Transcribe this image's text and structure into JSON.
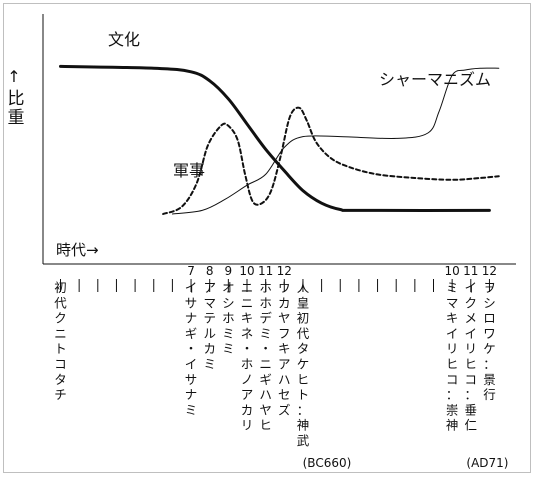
{
  "chart_data": {
    "type": "line",
    "x_axis_label": "時代→",
    "y_axis_label_arrow": "↑",
    "y_axis_label": "比重",
    "ticks": [
      {
        "num": "",
        "label": "初代クニトコタチ"
      },
      {
        "num": "",
        "label": ""
      },
      {
        "num": "",
        "label": ""
      },
      {
        "num": "",
        "label": ""
      },
      {
        "num": "",
        "label": ""
      },
      {
        "num": "",
        "label": ""
      },
      {
        "num": "",
        "label": ""
      },
      {
        "num": "7",
        "label": "イサナギ・イサナミ"
      },
      {
        "num": "8",
        "label": "アマテルカミ"
      },
      {
        "num": "9",
        "label": "オシホミミ"
      },
      {
        "num": "10",
        "label": "ニニキネ・ホノアカリ"
      },
      {
        "num": "11",
        "label": "ホホデミ・ニギハヤヒ"
      },
      {
        "num": "12",
        "label": "ウカヤフキアハセズ"
      },
      {
        "num": "",
        "label": "人皇初代タケヒト：神武"
      },
      {
        "num": "",
        "label": ""
      },
      {
        "num": "",
        "label": ""
      },
      {
        "num": "",
        "label": ""
      },
      {
        "num": "",
        "label": ""
      },
      {
        "num": "",
        "label": ""
      },
      {
        "num": "",
        "label": ""
      },
      {
        "num": "",
        "label": ""
      },
      {
        "num": "10",
        "label": "ミマキイリヒコ：崇神"
      },
      {
        "num": "11",
        "label": "イクメイリヒコ：垂仁"
      },
      {
        "num": "12",
        "label": "ヲシロワケ：景行"
      }
    ],
    "markers": [
      {
        "text": "(BC660)",
        "at_tick": 13
      },
      {
        "text": "(AD71)",
        "at_tick": 23
      }
    ],
    "ylim": [
      0,
      1
    ],
    "series": [
      {
        "name": "文化",
        "style": "solid-thick",
        "points": [
          [
            0,
            0.82
          ],
          [
            5,
            0.81
          ],
          [
            7,
            0.79
          ],
          [
            8,
            0.74
          ],
          [
            9,
            0.64
          ],
          [
            10,
            0.5
          ],
          [
            11,
            0.36
          ],
          [
            12,
            0.24
          ],
          [
            13,
            0.13
          ],
          [
            14,
            0.06
          ],
          [
            15,
            0.025
          ],
          [
            16,
            0.02
          ],
          [
            23,
            0.02
          ]
        ]
      },
      {
        "name": "軍事",
        "style": "dashed",
        "points": [
          [
            5.5,
            0
          ],
          [
            6.5,
            0.04
          ],
          [
            7.3,
            0.17
          ],
          [
            7.9,
            0.38
          ],
          [
            8.6,
            0.49
          ],
          [
            9.0,
            0.49
          ],
          [
            9.5,
            0.41
          ],
          [
            9.9,
            0.22
          ],
          [
            10.3,
            0.07
          ],
          [
            10.8,
            0.06
          ],
          [
            11.3,
            0.13
          ],
          [
            11.8,
            0.32
          ],
          [
            12.3,
            0.54
          ],
          [
            12.8,
            0.59
          ],
          [
            13.2,
            0.52
          ],
          [
            13.7,
            0.4
          ],
          [
            14.5,
            0.31
          ],
          [
            15.5,
            0.26
          ],
          [
            17,
            0.22
          ],
          [
            19,
            0.2
          ],
          [
            21,
            0.19
          ],
          [
            22.5,
            0.2
          ],
          [
            23.5,
            0.21
          ]
        ]
      },
      {
        "name": "シャーマニズム",
        "style": "solid-thin",
        "points": [
          [
            6,
            0
          ],
          [
            7.6,
            0.02
          ],
          [
            8.8,
            0.08
          ],
          [
            10,
            0.16
          ],
          [
            11,
            0.22
          ],
          [
            12,
            0.37
          ],
          [
            13,
            0.43
          ],
          [
            15,
            0.43
          ],
          [
            18,
            0.42
          ],
          [
            19.7,
            0.45
          ],
          [
            20.3,
            0.57
          ],
          [
            21,
            0.77
          ],
          [
            21.7,
            0.8
          ],
          [
            22.5,
            0.81
          ],
          [
            23.5,
            0.81
          ]
        ]
      }
    ],
    "series_labels": [
      "文化",
      "軍事",
      "シャーマニズム"
    ],
    "grid": false,
    "legend": "inline labels"
  }
}
